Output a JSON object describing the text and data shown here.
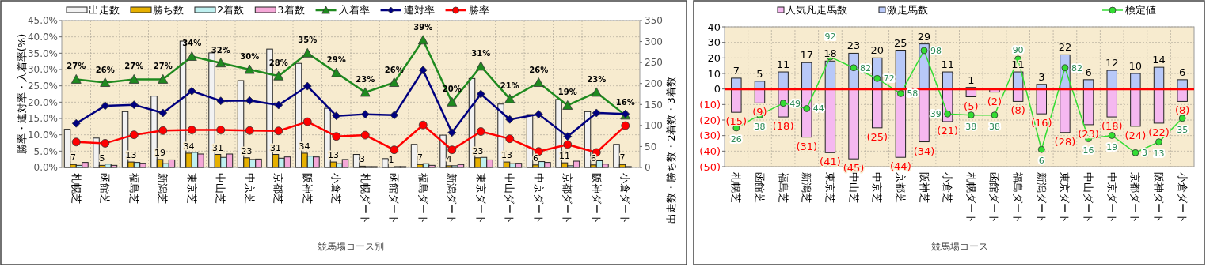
{
  "chart_data": [
    {
      "type": "bar",
      "xlabel": "競馬場コース別",
      "ylabel": "勝率・連対率・入着率(%)",
      "y2label": "出走数・勝ち数・2着数・3着数",
      "categories": [
        "札幌芝",
        "函館芝",
        "福島芝",
        "新潟芝",
        "東京芝",
        "中山芝",
        "中京芝",
        "京都芝",
        "阪神芝",
        "小倉芝",
        "札幌ダート",
        "函館ダート",
        "福島ダート",
        "新潟ダート",
        "東京ダート",
        "中山ダート",
        "中京ダート",
        "京都ダート",
        "阪神ダート",
        "小倉ダート"
      ],
      "ylim": [
        0,
        45
      ],
      "yticks": [
        {
          "value": 0,
          "label": "0.0%"
        },
        {
          "value": 5,
          "label": "5.0%"
        },
        {
          "value": 10,
          "label": "10.0%"
        },
        {
          "value": 15,
          "label": "15.0%"
        },
        {
          "value": 20,
          "label": "20.0%"
        },
        {
          "value": 25,
          "label": "25.0%"
        },
        {
          "value": 30,
          "label": "30.0%"
        },
        {
          "value": 35,
          "label": "35.0%"
        },
        {
          "value": 40,
          "label": "40.0%"
        },
        {
          "value": 45,
          "label": "45.0%"
        }
      ],
      "y2lim": [
        0,
        350
      ],
      "y2ticks": [
        0,
        50,
        100,
        150,
        200,
        250,
        300,
        350
      ],
      "grid": true,
      "legend": "top",
      "series": [
        {
          "name": "出走数",
          "axis": "y2",
          "color": "#f2f2f2",
          "values": [
            91,
            70,
            133,
            170,
            301,
            273,
            207,
            282,
            248,
            141,
            31,
            21,
            55,
            77,
            212,
            151,
            126,
            162,
            133,
            55
          ]
        },
        {
          "name": "勝ち数",
          "axis": "y2",
          "color": "#e6b000",
          "values": [
            7,
            5,
            13,
            19,
            34,
            31,
            23,
            31,
            34,
            13,
            3,
            1,
            7,
            4,
            23,
            13,
            6,
            11,
            6,
            7
          ],
          "value_labels": [
            "7",
            "5",
            "13",
            "19",
            "34",
            "31",
            "23",
            "31",
            "34",
            "13",
            "3",
            "1",
            "7",
            "4",
            "23",
            "13",
            "6",
            "11",
            "6",
            "7"
          ]
        },
        {
          "name": "2着数",
          "axis": "y2",
          "color": "#bff0f0",
          "values": [
            5,
            8,
            12,
            9,
            36,
            24,
            19,
            22,
            27,
            9,
            2,
            2,
            9,
            4,
            24,
            9,
            14,
            4,
            16,
            2
          ]
        },
        {
          "name": "3着数",
          "axis": "y2",
          "color": "#f5a8d8",
          "values": [
            12,
            5,
            10,
            18,
            32,
            32,
            20,
            25,
            25,
            19,
            2,
            2,
            5,
            7,
            18,
            10,
            12,
            15,
            8,
            0
          ]
        },
        {
          "name": "入着率",
          "type": "line",
          "axis": "y",
          "color": "#1f8a1f",
          "marker": "triangle",
          "values": [
            27,
            26,
            27,
            27,
            34,
            32,
            30,
            28,
            35,
            29,
            23,
            26,
            39,
            20,
            31,
            21,
            26,
            19,
            23,
            16
          ],
          "value_labels": [
            "27%",
            "26%",
            "27%",
            "27%",
            "34%",
            "32%",
            "30%",
            "28%",
            "35%",
            "29%",
            "23%",
            "26%",
            "39%",
            "20%",
            "31%",
            "21%",
            "26%",
            "19%",
            "23%",
            "16%"
          ]
        },
        {
          "name": "連対率",
          "type": "line",
          "axis": "y",
          "color": "#00007f",
          "marker": "diamond",
          "values": [
            13.5,
            18.9,
            19.2,
            16.7,
            23.4,
            20.4,
            20.5,
            19.1,
            24.9,
            15.8,
            16.3,
            16.0,
            29.8,
            10.7,
            22.5,
            14.7,
            16.3,
            9.5,
            16.7,
            16.4
          ]
        },
        {
          "name": "勝率",
          "type": "line",
          "axis": "y",
          "color": "#ff0000",
          "marker": "circle",
          "values": [
            7.8,
            7.4,
            10.0,
            11.3,
            11.5,
            11.5,
            11.3,
            11.2,
            14.0,
            9.5,
            9.9,
            5.4,
            13.0,
            5.4,
            11.0,
            8.8,
            4.9,
            7.0,
            4.6,
            12.8
          ]
        }
      ]
    },
    {
      "type": "bar",
      "xlabel": "競馬場コース",
      "stacked": true,
      "categories": [
        "札幌芝",
        "函館芝",
        "福島芝",
        "新潟芝",
        "東京芝",
        "中山芝",
        "中京芝",
        "京都芝",
        "阪神芝",
        "小倉芝",
        "札幌ダート",
        "函館ダート",
        "福島ダート",
        "新潟ダート",
        "東京ダート",
        "中山ダート",
        "中京ダート",
        "京都ダート",
        "阪神ダート",
        "小倉ダート"
      ],
      "ylim": [
        -50,
        40
      ],
      "yticks": [
        {
          "value": -50,
          "label": "(50)"
        },
        {
          "value": -40,
          "label": "(40)"
        },
        {
          "value": -30,
          "label": "(30)"
        },
        {
          "value": -20,
          "label": "(20)"
        },
        {
          "value": -10,
          "label": "(10)"
        },
        0,
        10,
        20,
        30,
        40
      ],
      "y2lim": [
        -10,
        120
      ],
      "grid": true,
      "legend": "top",
      "ref_lines": [
        {
          "axis": "y",
          "value": 0,
          "color": "#ff0000"
        }
      ],
      "series": [
        {
          "name": "人気凡走馬数",
          "color": "#f5b8f0",
          "values": [
            -15,
            -9,
            -18,
            -31,
            -41,
            -45,
            -25,
            -44,
            -34,
            -21,
            -5,
            -2,
            -8,
            -16,
            -28,
            -23,
            -18,
            -24,
            -22,
            -8
          ],
          "value_labels": [
            "(15)",
            "(9)",
            "(18)",
            "(31)",
            "(41)",
            "(45)",
            "(25)",
            "(44)",
            "(34)",
            "(21)",
            "(5)",
            "(2)",
            "(8)",
            "(16)",
            "(28)",
            "(23)",
            "(18)",
            "(24)",
            "(22)",
            "(8)"
          ]
        },
        {
          "name": "激走馬数",
          "color": "#b8c8f8",
          "values": [
            7,
            5,
            11,
            17,
            18,
            23,
            20,
            25,
            29,
            11,
            1,
            0,
            11,
            3,
            22,
            6,
            12,
            10,
            14,
            6
          ],
          "value_labels": [
            "7",
            "5",
            "11",
            "17",
            "18",
            "23",
            "20",
            "25",
            "29",
            "11",
            "1",
            null,
            "11",
            "3",
            "22",
            "6",
            "12",
            "10",
            "14",
            "6"
          ]
        },
        {
          "name": "検定値",
          "type": "line",
          "axis": "y2",
          "color": "#33dd33",
          "marker": "circle",
          "values": [
            26,
            38,
            49,
            44,
            92,
            82,
            72,
            58,
            98,
            39,
            38,
            38,
            90,
            6,
            82,
            16,
            19,
            3,
            13,
            35
          ],
          "value_labels": [
            "26",
            "38",
            "49",
            "44",
            "92",
            "82",
            "72",
            "58",
            "98",
            "39",
            "38",
            "38",
            "90",
            "6",
            "82",
            "16",
            "19",
            "3",
            "13",
            "35"
          ]
        }
      ]
    }
  ]
}
